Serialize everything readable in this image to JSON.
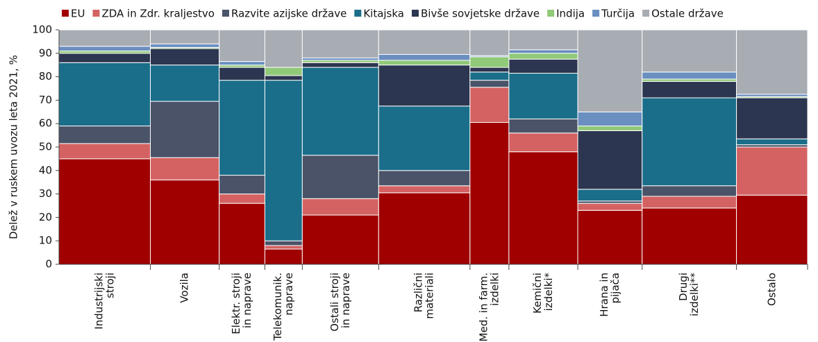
{
  "chart_data": {
    "type": "marimekko",
    "y_label": "Delež v ruskem uvozu leta 2021, %",
    "categories": [
      [
        "Industrijski",
        "stroji"
      ],
      [
        "Vozila"
      ],
      [
        "Elektr. stroji",
        "in naprave"
      ],
      [
        "Telekomunik.",
        "naprave"
      ],
      [
        "Ostali stroji",
        "in naprave"
      ],
      [
        "Različni",
        "materiali"
      ],
      [
        "Med. in farm.",
        "izdelki"
      ],
      [
        "Kemični",
        "izdelki*"
      ],
      [
        "Hrana in",
        "pijača"
      ],
      [
        "Drugi",
        "izdelki**"
      ],
      [
        "Ostalo"
      ]
    ],
    "widths": [
      12.2,
      9.2,
      6.1,
      5.0,
      10.2,
      12.2,
      5.2,
      9.2,
      8.6,
      12.6,
      9.5
    ],
    "series": [
      {
        "name": "EU",
        "color": "#a00000",
        "values": [
          45,
          36,
          26,
          6.5,
          21,
          30.5,
          60.5,
          48,
          23,
          24,
          29.5
        ]
      },
      {
        "name": "ZDA in Zdr. kraljestvo",
        "color": "#d46262",
        "values": [
          6.5,
          9.5,
          4,
          1.5,
          7,
          3,
          15,
          8,
          3,
          5,
          20.5
        ]
      },
      {
        "name": "Razvite azijske države",
        "color": "#4a5368",
        "values": [
          7.5,
          24,
          8,
          2,
          18.5,
          6.5,
          3,
          6,
          1,
          4.5,
          1
        ]
      },
      {
        "name": "Kitajska",
        "color": "#1a6e8a",
        "values": [
          27,
          15.5,
          40.5,
          68.5,
          37.5,
          27.5,
          3.5,
          19.5,
          5,
          37.5,
          2.5
        ]
      },
      {
        "name": "Bivše sovjetske države",
        "color": "#2d3650",
        "values": [
          4,
          7,
          5.5,
          2,
          2,
          17.5,
          2,
          6,
          25,
          7,
          17.5
        ]
      },
      {
        "name": "Indija",
        "color": "#90c978",
        "values": [
          1,
          0.5,
          1,
          3.5,
          1,
          2,
          4.5,
          2.5,
          2,
          1,
          0.5
        ]
      },
      {
        "name": "Turčija",
        "color": "#6a8fc0",
        "values": [
          2,
          1.5,
          1.5,
          0,
          1,
          2.5,
          0.5,
          1.5,
          6,
          3,
          1
        ]
      },
      {
        "name": "Ostale države",
        "color": "#a8acb3",
        "values": [
          7,
          6,
          13.5,
          16,
          12,
          10.5,
          11,
          8.5,
          35,
          18,
          27.5
        ]
      }
    ],
    "ylim": [
      0,
      100
    ],
    "yticks": [
      0,
      10,
      20,
      30,
      40,
      50,
      60,
      70,
      80,
      90,
      100
    ]
  }
}
